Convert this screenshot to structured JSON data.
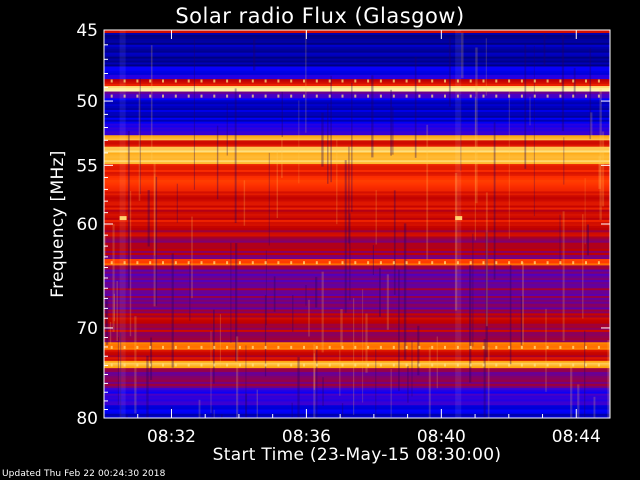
{
  "chart_data": {
    "type": "heatmap",
    "title": "Solar radio Flux (Glasgow)",
    "xlabel": "Start Time (23-May-15 08:30:00)",
    "ylabel": "Frequency [MHz]",
    "x_ticks": [
      "08:32",
      "08:36",
      "08:40",
      "08:44"
    ],
    "x_tick_minutes": [
      2,
      6,
      10,
      14
    ],
    "xlim_minutes": [
      0,
      15
    ],
    "y_ticks": [
      45,
      50,
      55,
      60,
      70,
      80
    ],
    "ylim_mhz": [
      45,
      80
    ],
    "y_scale": "log",
    "colormap": [
      "#000080",
      "#0000ff",
      "#5000c0",
      "#c00000",
      "#ff3000",
      "#ffa000",
      "#ffffc0"
    ],
    "bands": [
      {
        "freq_mhz": [
          45.0,
          45.2
        ],
        "level": 0.55
      },
      {
        "freq_mhz": [
          45.2,
          47.5
        ],
        "level": 0.05
      },
      {
        "freq_mhz": [
          47.5,
          48.4
        ],
        "level": 0.18
      },
      {
        "freq_mhz": [
          48.4,
          48.9
        ],
        "level": 0.55
      },
      {
        "freq_mhz": [
          48.9,
          49.3
        ],
        "level": 0.98
      },
      {
        "freq_mhz": [
          49.3,
          49.8
        ],
        "level": 0.35
      },
      {
        "freq_mhz": [
          49.8,
          51.7
        ],
        "level": 0.1
      },
      {
        "freq_mhz": [
          51.7,
          52.6
        ],
        "level": 0.25
      },
      {
        "freq_mhz": [
          52.6,
          53.0
        ],
        "level": 0.9
      },
      {
        "freq_mhz": [
          53.0,
          53.5
        ],
        "level": 0.6
      },
      {
        "freq_mhz": [
          53.5,
          54.9
        ],
        "level": 0.88
      },
      {
        "freq_mhz": [
          54.9,
          57.5
        ],
        "level": 0.62
      },
      {
        "freq_mhz": [
          57.5,
          60.0
        ],
        "level": 0.55
      },
      {
        "freq_mhz": [
          60.0,
          61.5
        ],
        "level": 0.5
      },
      {
        "freq_mhz": [
          61.5,
          63.2
        ],
        "level": 0.45
      },
      {
        "freq_mhz": [
          63.2,
          63.8
        ],
        "level": 0.75
      },
      {
        "freq_mhz": [
          63.8,
          66.0
        ],
        "level": 0.4
      },
      {
        "freq_mhz": [
          66.0,
          68.5
        ],
        "level": 0.42
      },
      {
        "freq_mhz": [
          68.5,
          71.5
        ],
        "level": 0.48
      },
      {
        "freq_mhz": [
          71.5,
          72.3
        ],
        "level": 0.78
      },
      {
        "freq_mhz": [
          72.3,
          73.5
        ],
        "level": 0.52
      },
      {
        "freq_mhz": [
          73.5,
          74.3
        ],
        "level": 0.85
      },
      {
        "freq_mhz": [
          74.3,
          76.5
        ],
        "level": 0.38
      },
      {
        "freq_mhz": [
          76.5,
          78.5
        ],
        "level": 0.25
      },
      {
        "freq_mhz": [
          78.5,
          80.0
        ],
        "level": 0.12
      }
    ]
  },
  "footer": "Updated Thu Feb 22 00:24:30 2018"
}
